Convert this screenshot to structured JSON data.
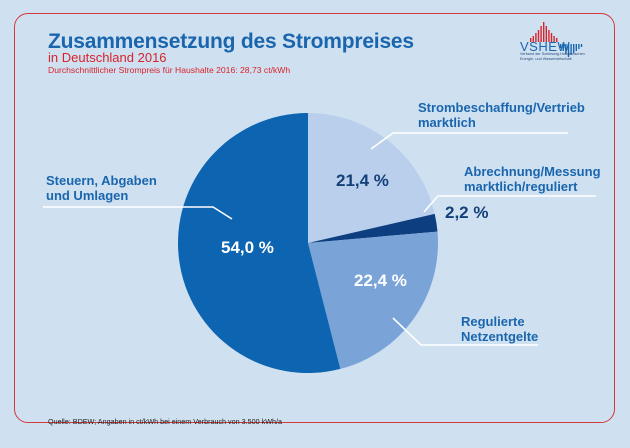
{
  "header": {
    "title": "Zusammensetzung des Strompreises",
    "subtitle": "in Deutschland 2016",
    "note": "Durchschnittlicher Strompreis für Haushalte 2016: 28,73 ct/kWh"
  },
  "logo": {
    "name": "VSHEW",
    "tagline_line1": "Verband der Schleswig-Holsteinischen",
    "tagline_line2": "Energie- und Wasserwirtschaft",
    "colors": {
      "red": "#d8232a",
      "blue": "#1a66ae"
    }
  },
  "footer": {
    "source": "Quelle: BDEW; Angaben in ct/kWh bei einem Verbrauch von 3.500 kWh/a"
  },
  "chart_data": {
    "type": "pie",
    "title": "Zusammensetzung des Strompreises",
    "subtitle": "in Deutschland 2016",
    "unit": "%",
    "start": "top",
    "direction": "clockwise",
    "slices": [
      {
        "label_line1": "Strombeschaffung/Vertrieb",
        "label_line2": "marktlich",
        "value": 21.4,
        "value_label": "21,4 %",
        "color": "#b9cfec",
        "value_color": "#14407a"
      },
      {
        "label_line1": "Abrechnung/Messung",
        "label_line2": "marktlich/reguliert",
        "value": 2.2,
        "value_label": "2,2 %",
        "color": "#0d3f80",
        "value_color": "#14407a"
      },
      {
        "label_line1": "Regulierte",
        "label_line2": "Netzentgelte",
        "value": 22.4,
        "value_label": "22,4 %",
        "color": "#7aa3d8",
        "value_color": "#ffffff"
      },
      {
        "label_line1": "Steuern, Abgaben",
        "label_line2": "und Umlagen",
        "value": 54.0,
        "value_label": "54,0 %",
        "color": "#0d64b0",
        "value_color": "#ffffff"
      }
    ]
  }
}
